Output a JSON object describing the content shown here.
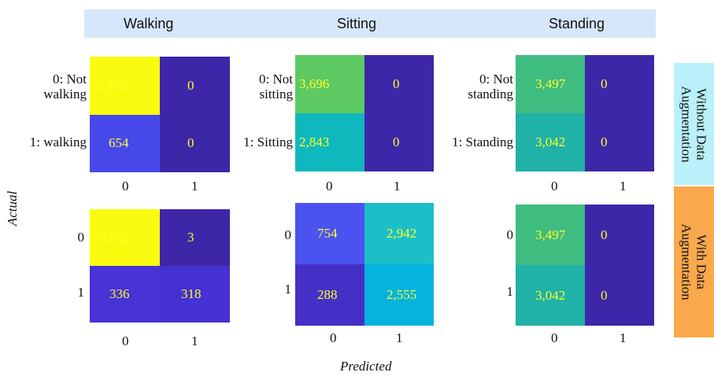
{
  "header": {
    "titles": [
      "Walking",
      "Sitting",
      "Standing"
    ]
  },
  "side_labels": {
    "top": [
      "Without Data",
      "Augmentation"
    ],
    "bottom": [
      "With Data",
      "Augmentation"
    ]
  },
  "axes": {
    "x_title": "Predicted",
    "y_title": "Actual"
  },
  "chart_data": [
    {
      "type": "heatmap",
      "activity": "Walking",
      "augmentation": "Without Data Augmentation",
      "row_labels": [
        "0: Not walking",
        "1: walking"
      ],
      "col_labels": [
        "0",
        "1"
      ],
      "values": [
        [
          5885,
          0
        ],
        [
          654,
          0
        ]
      ],
      "value_labels": [
        [
          "5,885",
          "0"
        ],
        [
          "654",
          "0"
        ]
      ],
      "cell_colors": [
        [
          "#f9fb0e",
          "#3e26a8"
        ],
        [
          "#4748ea",
          "#3e26a8"
        ]
      ]
    },
    {
      "type": "heatmap",
      "activity": "Sitting",
      "augmentation": "Without Data Augmentation",
      "row_labels": [
        "0: Not sitting",
        "1: Sitting"
      ],
      "col_labels": [
        "0",
        "1"
      ],
      "values": [
        [
          3696,
          0
        ],
        [
          2843,
          0
        ]
      ],
      "value_labels": [
        [
          "3,696",
          "0"
        ],
        [
          "2,843",
          "0"
        ]
      ],
      "cell_colors": [
        [
          "#5dc963",
          "#3e26a8"
        ],
        [
          "#0fb8bd",
          "#3e26a8"
        ]
      ]
    },
    {
      "type": "heatmap",
      "activity": "Standing",
      "augmentation": "Without Data Augmentation",
      "row_labels": [
        "0: Not standing",
        "1: Standing"
      ],
      "col_labels": [
        "0",
        "1"
      ],
      "values": [
        [
          3497,
          0
        ],
        [
          3042,
          0
        ]
      ],
      "value_labels": [
        [
          "3,497",
          "0"
        ],
        [
          "3,042",
          "0"
        ]
      ],
      "cell_colors": [
        [
          "#3fbc80",
          "#3e26a8"
        ],
        [
          "#20b1a7",
          "#3e26a8"
        ]
      ]
    },
    {
      "type": "heatmap",
      "activity": "Walking",
      "augmentation": "With Data Augmentation",
      "row_labels": [
        "0",
        "1"
      ],
      "col_labels": [
        "0",
        "1"
      ],
      "values": [
        [
          5882,
          3
        ],
        [
          336,
          318
        ]
      ],
      "value_labels": [
        [
          "5,882",
          "3"
        ],
        [
          "336",
          "318"
        ]
      ],
      "cell_colors": [
        [
          "#f9fb0e",
          "#3e26a8"
        ],
        [
          "#4733d6",
          "#4531d2"
        ]
      ]
    },
    {
      "type": "heatmap",
      "activity": "Sitting",
      "augmentation": "With Data Augmentation",
      "row_labels": [
        "0",
        "1"
      ],
      "col_labels": [
        "0",
        "1"
      ],
      "values": [
        [
          754,
          2942
        ],
        [
          288,
          2555
        ]
      ],
      "value_labels": [
        [
          "754",
          "2,942"
        ],
        [
          "288",
          "2,555"
        ]
      ],
      "cell_colors": [
        [
          "#4a52f0",
          "#1cbfc7"
        ],
        [
          "#4430c6",
          "#06b3de"
        ]
      ]
    },
    {
      "type": "heatmap",
      "activity": "Standing",
      "augmentation": "With Data Augmentation",
      "row_labels": [
        "0",
        "1"
      ],
      "col_labels": [
        "0",
        "1"
      ],
      "values": [
        [
          3497,
          0
        ],
        [
          3042,
          0
        ]
      ],
      "value_labels": [
        [
          "3,497",
          "0"
        ],
        [
          "3,042",
          "0"
        ]
      ],
      "cell_colors": [
        [
          "#3fbc80",
          "#3e26a8"
        ],
        [
          "#20b1a7",
          "#3e26a8"
        ]
      ]
    }
  ]
}
